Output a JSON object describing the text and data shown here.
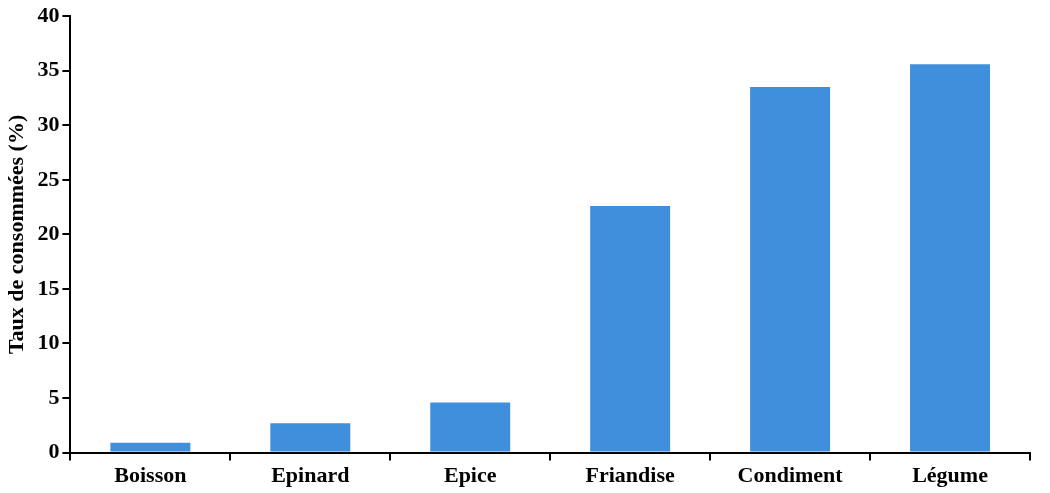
{
  "chart_data": {
    "type": "bar",
    "ylabel": "Taux de consommées (%)",
    "categories": [
      "Boisson",
      "Epinard",
      "Epice",
      "Friandise",
      "Condiment",
      "Légume"
    ],
    "values": [
      0.9,
      2.7,
      4.6,
      22.6,
      33.5,
      35.6
    ],
    "color": "#3f8fdc",
    "ylim": [
      0,
      40
    ],
    "yticks": [
      0,
      5,
      10,
      15,
      20,
      25,
      30,
      35,
      40
    ],
    "grid": false,
    "legend": false
  }
}
